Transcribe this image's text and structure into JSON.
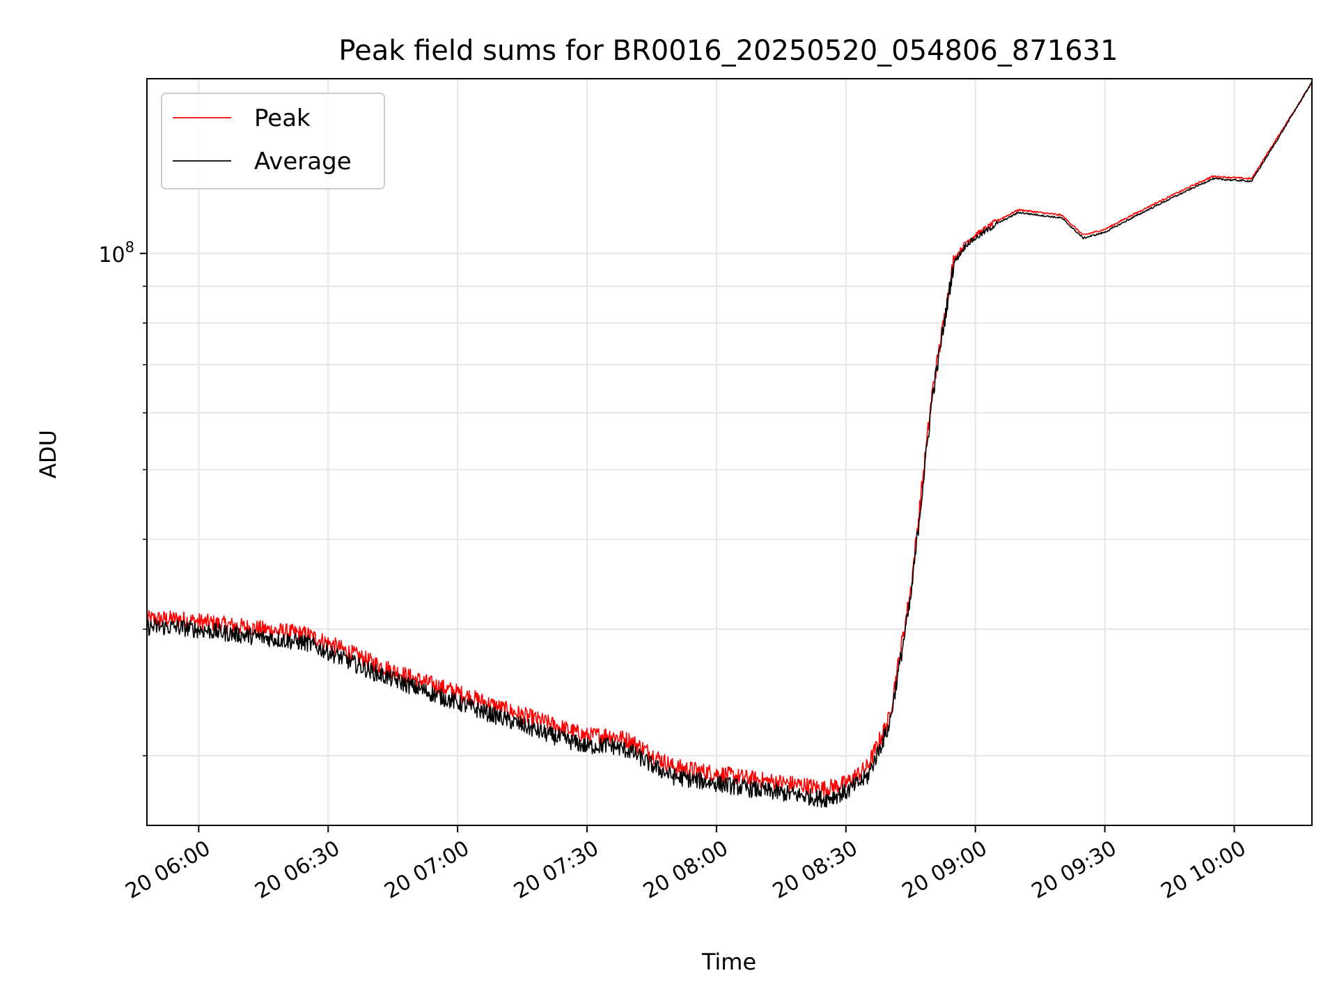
{
  "chart_data": {
    "type": "line",
    "title": "Peak field sums for BR0016_20250520_054806_871631",
    "xlabel": "Time",
    "ylabel": "ADU",
    "x_ticks": [
      "20 06:00",
      "20 06:30",
      "20 07:00",
      "20 07:30",
      "20 08:00",
      "20 08:30",
      "20 09:00",
      "20 09:30",
      "20 10:00"
    ],
    "y_tick_labels": [
      {
        "base": "10",
        "exp": "8",
        "value": 100000000
      }
    ],
    "y_scale": "log",
    "xlim": [
      "2025-05-20 05:48",
      "2025-05-20 10:18"
    ],
    "ylim": [
      16000000,
      175000000
    ],
    "grid": true,
    "legend": "upper left",
    "series": [
      {
        "name": "Peak",
        "color": "#ff0000",
        "x": [
          "2025-05-20 05:48",
          "2025-05-20 05:55",
          "2025-05-20 06:05",
          "2025-05-20 06:15",
          "2025-05-20 06:25",
          "2025-05-20 06:30",
          "2025-05-20 06:40",
          "2025-05-20 06:50",
          "2025-05-20 07:00",
          "2025-05-20 07:10",
          "2025-05-20 07:20",
          "2025-05-20 07:30",
          "2025-05-20 07:35",
          "2025-05-20 07:40",
          "2025-05-20 07:45",
          "2025-05-20 07:50",
          "2025-05-20 08:00",
          "2025-05-20 08:10",
          "2025-05-20 08:20",
          "2025-05-20 08:25",
          "2025-05-20 08:30",
          "2025-05-20 08:35",
          "2025-05-20 08:40",
          "2025-05-20 08:45",
          "2025-05-20 08:50",
          "2025-05-20 08:55",
          "2025-05-20 08:58",
          "2025-05-20 09:05",
          "2025-05-20 09:10",
          "2025-05-20 09:15",
          "2025-05-20 09:20",
          "2025-05-20 09:25",
          "2025-05-20 09:30",
          "2025-05-20 09:35",
          "2025-05-20 09:40",
          "2025-05-20 09:45",
          "2025-05-20 09:50",
          "2025-05-20 09:55",
          "2025-05-20 10:04",
          "2025-05-20 10:10",
          "2025-05-20 10:18"
        ],
        "values": [
          31000000,
          31000000,
          30500000,
          30000000,
          29500000,
          28700000,
          27000000,
          25600000,
          24500000,
          23300000,
          22300000,
          21300000,
          21400000,
          21000000,
          20100000,
          19300000,
          18900000,
          18500000,
          18200000,
          18000000,
          18300000,
          19300000,
          22500000,
          34000000,
          64000000,
          98000000,
          104000000,
          111000000,
          115000000,
          114000000,
          113000000,
          106000000,
          108000000,
          112000000,
          116000000,
          120000000,
          124000000,
          128000000,
          127000000,
          145000000,
          173000000
        ]
      },
      {
        "name": "Average",
        "color": "#000000",
        "x": [
          "2025-05-20 05:48",
          "2025-05-20 05:55",
          "2025-05-20 06:05",
          "2025-05-20 06:15",
          "2025-05-20 06:25",
          "2025-05-20 06:30",
          "2025-05-20 06:40",
          "2025-05-20 06:50",
          "2025-05-20 07:00",
          "2025-05-20 07:10",
          "2025-05-20 07:20",
          "2025-05-20 07:30",
          "2025-05-20 07:35",
          "2025-05-20 07:40",
          "2025-05-20 07:45",
          "2025-05-20 07:50",
          "2025-05-20 08:00",
          "2025-05-20 08:10",
          "2025-05-20 08:20",
          "2025-05-20 08:25",
          "2025-05-20 08:30",
          "2025-05-20 08:35",
          "2025-05-20 08:40",
          "2025-05-20 08:45",
          "2025-05-20 08:50",
          "2025-05-20 08:55",
          "2025-05-20 08:58",
          "2025-05-20 09:05",
          "2025-05-20 09:10",
          "2025-05-20 09:15",
          "2025-05-20 09:20",
          "2025-05-20 09:25",
          "2025-05-20 09:30",
          "2025-05-20 09:35",
          "2025-05-20 09:40",
          "2025-05-20 09:45",
          "2025-05-20 09:50",
          "2025-05-20 09:55",
          "2025-05-20 10:04",
          "2025-05-20 10:10",
          "2025-05-20 10:18"
        ],
        "values": [
          30200000,
          30200000,
          29700000,
          29200000,
          28700000,
          27900000,
          26200000,
          24900000,
          23700000,
          22600000,
          21500000,
          20600000,
          20700000,
          20300000,
          19400000,
          18700000,
          18300000,
          17900000,
          17600000,
          17400000,
          17800000,
          18700000,
          22000000,
          33000000,
          63000000,
          97000000,
          103000000,
          110000000,
          114000000,
          113000000,
          112000000,
          105000000,
          107000000,
          111000000,
          115000000,
          119000000,
          123000000,
          127000000,
          126000000,
          144000000,
          173000000
        ]
      }
    ]
  }
}
